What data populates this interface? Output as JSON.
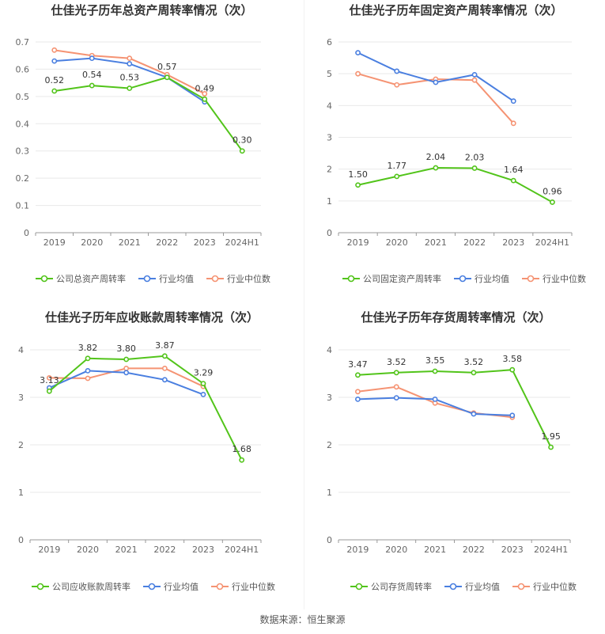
{
  "source": "数据来源：恒生聚源",
  "legend_labels": {
    "peer_avg": "行业均值",
    "peer_median": "行业中位数"
  },
  "colors": {
    "company": "#52c41a",
    "peer_avg": "#4a7fe0",
    "peer_median": "#f59373"
  },
  "chart_data": [
    {
      "type": "line",
      "title": "仕佳光子历年总资产周转率情况（次）",
      "categories": [
        "2019",
        "2020",
        "2021",
        "2022",
        "2023",
        "2024H1"
      ],
      "ylim": [
        0,
        0.7
      ],
      "yticks": [
        "0",
        "0.1",
        "0.2",
        "0.3",
        "0.4",
        "0.5",
        "0.6",
        "0.7"
      ],
      "series": [
        {
          "name": "公司总资产周转率",
          "values": [
            0.52,
            0.54,
            0.53,
            0.57,
            0.49,
            0.3
          ],
          "labels": [
            "0.52",
            "0.54",
            "0.53",
            "0.57",
            "0.49",
            "0.30"
          ]
        },
        {
          "name": "行业均值",
          "values": [
            0.63,
            0.64,
            0.62,
            0.57,
            0.48,
            null
          ]
        },
        {
          "name": "行业中位数",
          "values": [
            0.67,
            0.65,
            0.64,
            0.58,
            0.51,
            null
          ]
        }
      ]
    },
    {
      "type": "line",
      "title": "仕佳光子历年固定资产周转率情况（次）",
      "categories": [
        "2019",
        "2020",
        "2021",
        "2022",
        "2023",
        "2024H1"
      ],
      "ylim": [
        0,
        6
      ],
      "yticks": [
        "0",
        "1",
        "2",
        "3",
        "4",
        "5",
        "6"
      ],
      "series": [
        {
          "name": "公司固定资产周转率",
          "values": [
            1.5,
            1.77,
            2.04,
            2.03,
            1.64,
            0.96
          ],
          "labels": [
            "1.50",
            "1.77",
            "2.04",
            "2.03",
            "1.64",
            "0.96"
          ]
        },
        {
          "name": "行业均值",
          "values": [
            5.66,
            5.08,
            4.73,
            4.97,
            4.14,
            null
          ]
        },
        {
          "name": "行业中位数",
          "values": [
            5.0,
            4.65,
            4.83,
            4.8,
            3.44,
            null
          ]
        }
      ]
    },
    {
      "type": "line",
      "title": "仕佳光子历年应收账款周转率情况（次）",
      "categories": [
        "2019",
        "2020",
        "2021",
        "2022",
        "2023",
        "2024H1"
      ],
      "ylim": [
        0,
        4
      ],
      "yticks": [
        "0",
        "1",
        "2",
        "3",
        "4"
      ],
      "series": [
        {
          "name": "公司应收账款周转率",
          "values": [
            3.13,
            3.82,
            3.8,
            3.87,
            3.29,
            1.68
          ],
          "labels": [
            "3.13",
            "3.82",
            "3.80",
            "3.87",
            "3.29",
            "1.68"
          ]
        },
        {
          "name": "行业均值",
          "values": [
            3.2,
            3.56,
            3.52,
            3.37,
            3.06,
            null
          ]
        },
        {
          "name": "行业中位数",
          "values": [
            3.41,
            3.4,
            3.61,
            3.61,
            3.23,
            null
          ]
        }
      ]
    },
    {
      "type": "line",
      "title": "仕佳光子历年存货周转率情况（次）",
      "categories": [
        "2019",
        "2020",
        "2021",
        "2022",
        "2023",
        "2024H1"
      ],
      "ylim": [
        0,
        4
      ],
      "yticks": [
        "0",
        "1",
        "2",
        "3",
        "4"
      ],
      "series": [
        {
          "name": "公司存货周转率",
          "values": [
            3.47,
            3.52,
            3.55,
            3.52,
            3.58,
            1.95
          ],
          "labels": [
            "3.47",
            "3.52",
            "3.55",
            "3.52",
            "3.58",
            "1.95"
          ]
        },
        {
          "name": "行业均值",
          "values": [
            2.96,
            2.99,
            2.96,
            2.65,
            2.62,
            null
          ]
        },
        {
          "name": "行业中位数",
          "values": [
            3.12,
            3.22,
            2.88,
            2.67,
            2.58,
            null
          ]
        }
      ]
    }
  ]
}
